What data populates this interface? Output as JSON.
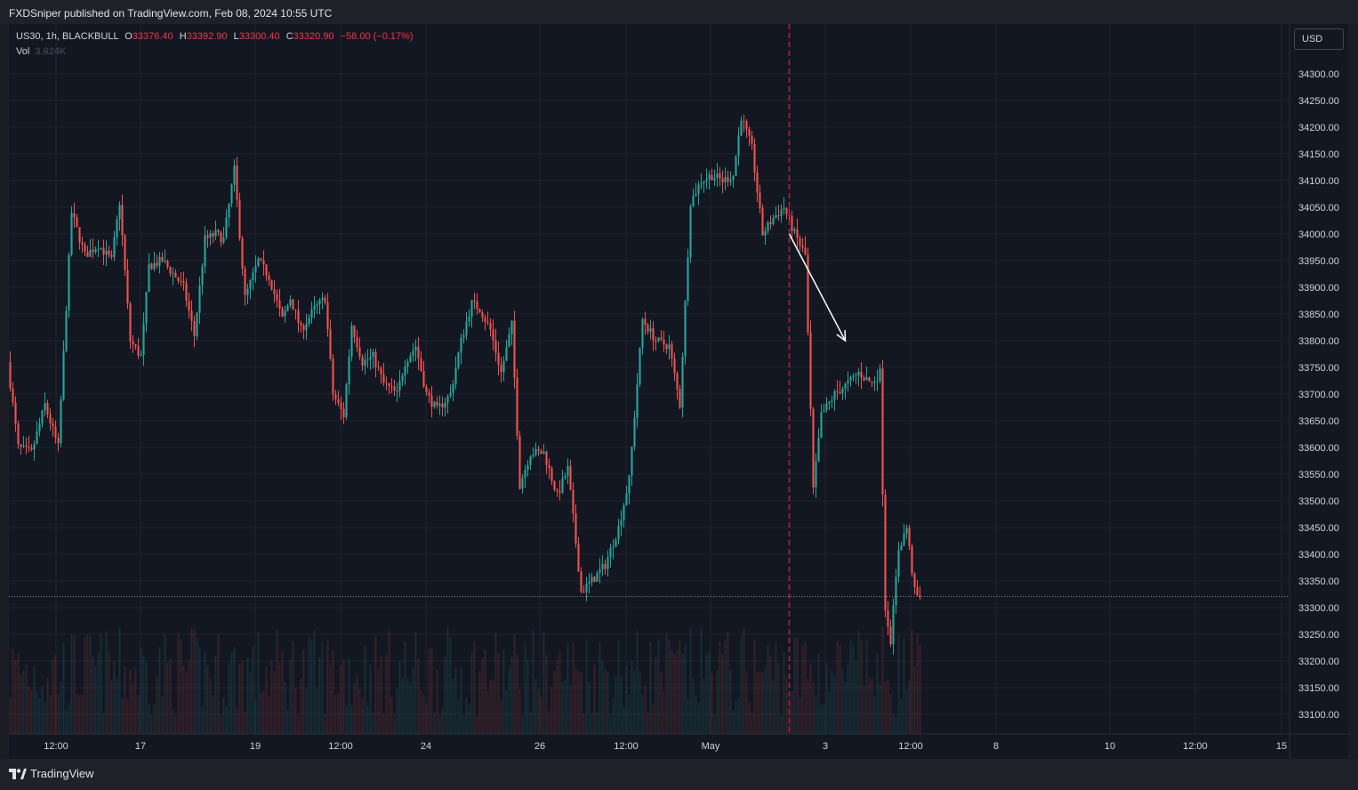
{
  "header": {
    "publish_line": "FXDSniper published on TradingView.com, Feb 08, 2024 10:55 UTC"
  },
  "legend": {
    "symbol": "US30, 1h, BLACKBULL",
    "open_label": "O",
    "open_value": "33376.40",
    "high_label": "H",
    "high_value": "33392.90",
    "low_label": "L",
    "low_value": "33300.40",
    "close_label": "C",
    "close_value": "33320.90",
    "change": "−58.00 (−0.17%)",
    "vol_label": "Vol",
    "vol_value": "3.624K"
  },
  "currency_button": "USD",
  "footer": {
    "brand": "TradingView"
  },
  "colors": {
    "up": "#26a69a",
    "down": "#ef5350",
    "grid": "#1f2330",
    "bg": "#131722"
  },
  "chart_data": {
    "type": "candlestick",
    "x_tick_labels": [
      "12:00",
      "17",
      "19",
      "12:00",
      "24",
      "26",
      "12:00",
      "May",
      "3",
      "12:00",
      "8",
      "10",
      "12:00",
      "15"
    ],
    "y_tick_labels": [
      "34300.00",
      "34250.00",
      "34200.00",
      "34150.00",
      "34100.00",
      "34050.00",
      "34000.00",
      "33950.00",
      "33900.00",
      "33850.00",
      "33800.00",
      "33750.00",
      "33700.00",
      "33650.00",
      "33600.00",
      "33550.00",
      "33500.00",
      "33450.00",
      "33400.00",
      "33350.00",
      "33300.00",
      "33250.00",
      "33200.00",
      "33150.00",
      "33100.00"
    ],
    "ylim": [
      33060,
      34340
    ],
    "last_price": 33320.9,
    "price_path": [
      [
        0,
        33760
      ],
      [
        4,
        33600
      ],
      [
        9,
        33590
      ],
      [
        14,
        33680
      ],
      [
        19,
        33600
      ],
      [
        24,
        34040
      ],
      [
        29,
        33960
      ],
      [
        34,
        33980
      ],
      [
        39,
        33950
      ],
      [
        42,
        34060
      ],
      [
        46,
        33800
      ],
      [
        50,
        33770
      ],
      [
        53,
        33940
      ],
      [
        58,
        33950
      ],
      [
        63,
        33920
      ],
      [
        66,
        33900
      ],
      [
        70,
        33810
      ],
      [
        74,
        33990
      ],
      [
        78,
        34000
      ],
      [
        81,
        33990
      ],
      [
        85,
        34120
      ],
      [
        89,
        33880
      ],
      [
        94,
        33950
      ],
      [
        98,
        33920
      ],
      [
        103,
        33840
      ],
      [
        106,
        33880
      ],
      [
        110,
        33820
      ],
      [
        115,
        33860
      ],
      [
        119,
        33880
      ],
      [
        122,
        33700
      ],
      [
        126,
        33660
      ],
      [
        129,
        33830
      ],
      [
        133,
        33760
      ],
      [
        137,
        33770
      ],
      [
        141,
        33720
      ],
      [
        146,
        33700
      ],
      [
        149,
        33760
      ],
      [
        153,
        33790
      ],
      [
        157,
        33700
      ],
      [
        161,
        33670
      ],
      [
        166,
        33700
      ],
      [
        170,
        33800
      ],
      [
        174,
        33870
      ],
      [
        177,
        33860
      ],
      [
        181,
        33820
      ],
      [
        185,
        33740
      ],
      [
        189,
        33830
      ],
      [
        192,
        33530
      ],
      [
        196,
        33590
      ],
      [
        201,
        33590
      ],
      [
        206,
        33510
      ],
      [
        210,
        33560
      ],
      [
        215,
        33330
      ],
      [
        219,
        33350
      ],
      [
        224,
        33380
      ],
      [
        229,
        33450
      ],
      [
        233,
        33540
      ],
      [
        238,
        33840
      ],
      [
        243,
        33800
      ],
      [
        248,
        33790
      ],
      [
        252,
        33680
      ],
      [
        256,
        34060
      ],
      [
        260,
        34100
      ],
      [
        264,
        34110
      ],
      [
        268,
        34100
      ],
      [
        272,
        34110
      ],
      [
        275,
        34220
      ],
      [
        279,
        34160
      ],
      [
        283,
        34000
      ],
      [
        287,
        34030
      ],
      [
        291,
        34050
      ],
      [
        295,
        34000
      ],
      [
        299,
        33960
      ],
      [
        302,
        33520
      ],
      [
        305,
        33660
      ],
      [
        310,
        33700
      ],
      [
        315,
        33720
      ],
      [
        319,
        33740
      ],
      [
        324,
        33720
      ],
      [
        327,
        33740
      ],
      [
        329,
        33300
      ],
      [
        331,
        33240
      ],
      [
        334,
        33410
      ],
      [
        337,
        33450
      ],
      [
        340,
        33330
      ],
      [
        341,
        33320.9
      ]
    ],
    "volume_level_note": "",
    "annotations": [
      {
        "type": "vertical-dashed-line",
        "x_bar": 292
      },
      {
        "type": "arrow",
        "from": [
          292,
          34000
        ],
        "to": [
          313,
          33800
        ]
      }
    ],
    "total_bars_axis": 480
  }
}
